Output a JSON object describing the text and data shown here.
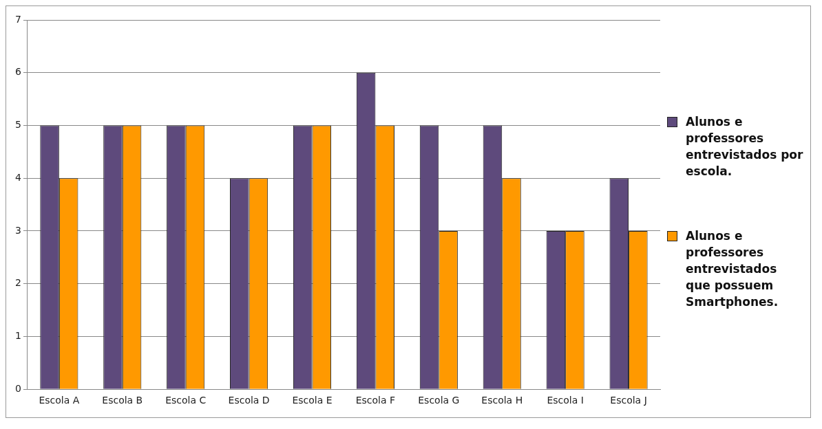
{
  "chart_data": {
    "type": "bar",
    "categories": [
      "Escola A",
      "Escola B",
      "Escola C",
      "Escola D",
      "Escola E",
      "Escola F",
      "Escola G",
      "Escola H",
      "Escola I",
      "Escola J"
    ],
    "series": [
      {
        "name": "Alunos e professores entrevistados por escola.",
        "color": "#5e4a7c",
        "values": [
          5,
          5,
          5,
          4,
          5,
          6,
          5,
          5,
          3,
          4
        ]
      },
      {
        "name": "Alunos e professores entrevistados que possuem Smartphones.",
        "color": "#ff9900",
        "values": [
          4,
          5,
          5,
          4,
          5,
          5,
          3,
          4,
          3,
          3
        ]
      }
    ],
    "ylim": [
      0,
      7
    ],
    "yticks": [
      0,
      1,
      2,
      3,
      4,
      5,
      6,
      7
    ],
    "grid": "y",
    "legend": "right"
  }
}
